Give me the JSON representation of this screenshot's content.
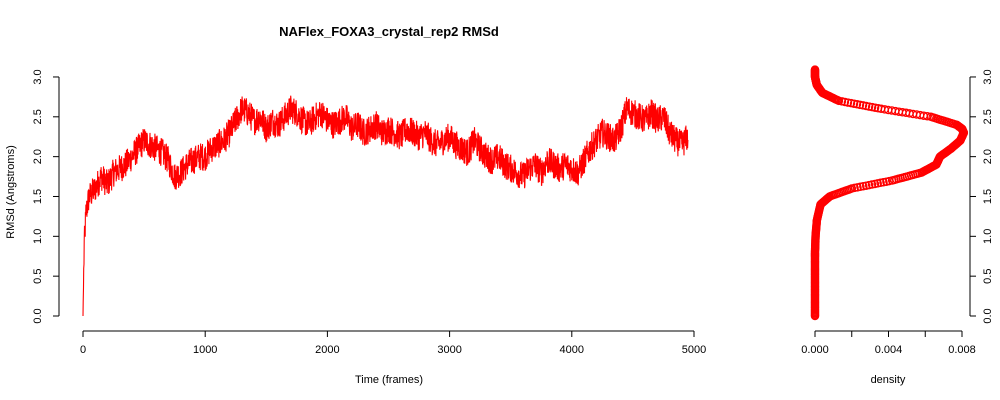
{
  "chart_data": [
    {
      "type": "line",
      "title": "NAFlex_FOXA3_crystal_rep2 RMSd",
      "xlabel": "Time (frames)",
      "ylabel": "RMSd (Angstroms)",
      "xlim": [
        0,
        5000
      ],
      "ylim": [
        0,
        3.1
      ],
      "x_ticks": [
        "0",
        "1000",
        "2000",
        "3000",
        "4000",
        "5000"
      ],
      "y_ticks": [
        "0.0",
        "0.5",
        "1.0",
        "1.5",
        "2.0",
        "2.5",
        "3.0"
      ],
      "color": "#ff0000",
      "grid": false,
      "x": [
        0,
        10,
        25,
        50,
        100,
        150,
        200,
        250,
        300,
        350,
        400,
        450,
        500,
        550,
        600,
        650,
        700,
        750,
        800,
        850,
        900,
        950,
        1000,
        1050,
        1100,
        1150,
        1200,
        1250,
        1300,
        1350,
        1400,
        1450,
        1500,
        1550,
        1600,
        1650,
        1700,
        1750,
        1800,
        1850,
        1900,
        1950,
        2000,
        2050,
        2100,
        2150,
        2200,
        2250,
        2300,
        2350,
        2400,
        2450,
        2500,
        2550,
        2600,
        2650,
        2700,
        2750,
        2800,
        2850,
        2900,
        2950,
        3000,
        3050,
        3100,
        3150,
        3200,
        3250,
        3300,
        3350,
        3400,
        3450,
        3500,
        3550,
        3600,
        3650,
        3700,
        3750,
        3800,
        3850,
        3900,
        3950,
        4000,
        4050,
        4100,
        4150,
        4200,
        4250,
        4300,
        4350,
        4400,
        4450,
        4500,
        4550,
        4600,
        4650,
        4700,
        4750,
        4800,
        4850,
        4900,
        4950
      ],
      "values": [
        0.0,
        0.9,
        1.3,
        1.5,
        1.6,
        1.75,
        1.65,
        1.8,
        1.85,
        1.9,
        2.0,
        2.1,
        2.2,
        2.15,
        2.1,
        2.05,
        1.95,
        1.75,
        1.8,
        1.9,
        1.95,
        2.0,
        2.0,
        2.1,
        2.15,
        2.2,
        2.3,
        2.45,
        2.6,
        2.55,
        2.45,
        2.5,
        2.35,
        2.45,
        2.4,
        2.5,
        2.6,
        2.55,
        2.45,
        2.4,
        2.5,
        2.55,
        2.45,
        2.4,
        2.45,
        2.5,
        2.35,
        2.4,
        2.3,
        2.35,
        2.4,
        2.3,
        2.35,
        2.3,
        2.25,
        2.35,
        2.3,
        2.25,
        2.3,
        2.2,
        2.15,
        2.2,
        2.25,
        2.15,
        2.1,
        2.05,
        2.2,
        2.1,
        2.0,
        1.95,
        2.0,
        1.9,
        1.85,
        1.8,
        1.75,
        1.85,
        1.9,
        1.8,
        1.95,
        1.9,
        1.85,
        1.9,
        1.85,
        1.8,
        1.95,
        2.1,
        2.2,
        2.3,
        2.25,
        2.2,
        2.35,
        2.6,
        2.55,
        2.5,
        2.45,
        2.55,
        2.45,
        2.5,
        2.3,
        2.2,
        2.15,
        2.25
      ]
    },
    {
      "type": "line",
      "title": "",
      "xlabel": "density",
      "ylabel": "",
      "xlim": [
        0,
        0.008
      ],
      "ylim": [
        0,
        3.1
      ],
      "x_ticks": [
        "0.000",
        "0.004",
        "0.008"
      ],
      "y_ticks": [
        "0.0",
        "0.5",
        "1.0",
        "1.5",
        "2.0",
        "2.5",
        "3.0"
      ],
      "color": "#ff0000",
      "marker": "circle",
      "grid": false,
      "y": [
        0.0,
        0.2,
        0.4,
        0.6,
        0.8,
        1.0,
        1.2,
        1.4,
        1.5,
        1.6,
        1.7,
        1.8,
        1.9,
        2.0,
        2.1,
        2.2,
        2.3,
        2.35,
        2.4,
        2.5,
        2.6,
        2.7,
        2.8,
        2.9,
        3.0,
        3.1
      ],
      "values": [
        0.0,
        0.0,
        0.0,
        0.0,
        0.0,
        3e-05,
        0.0001,
        0.0003,
        0.0008,
        0.002,
        0.0042,
        0.0058,
        0.0066,
        0.0068,
        0.0074,
        0.0079,
        0.0081,
        0.008,
        0.0077,
        0.0063,
        0.0036,
        0.0013,
        0.0004,
        0.0001,
        0.0,
        0.0
      ]
    }
  ]
}
